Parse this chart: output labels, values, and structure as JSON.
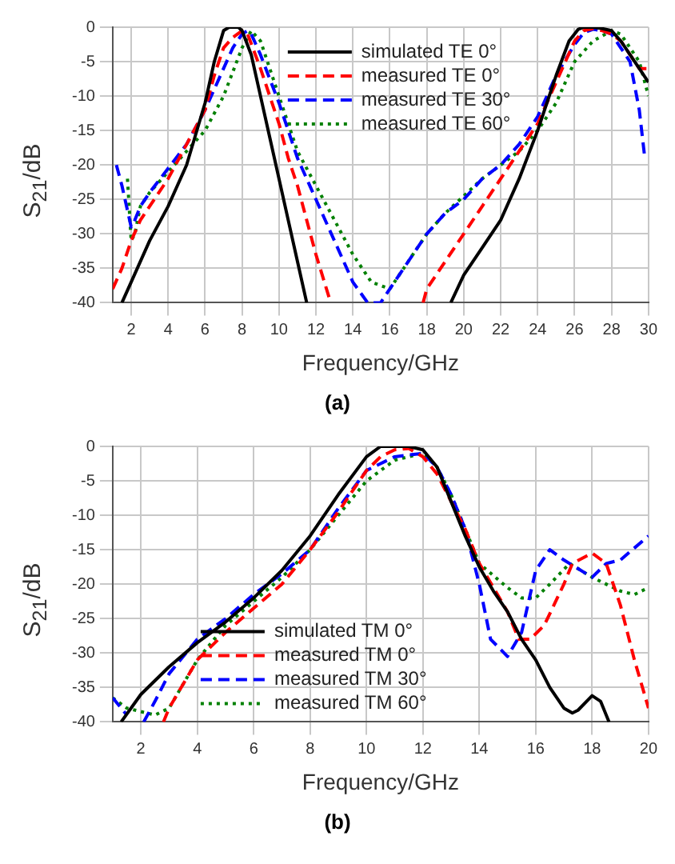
{
  "chart_data": [
    {
      "type": "line",
      "xlabel": "Frequency/GHz",
      "ylabel": "S$_{21}$/dB",
      "xlim": [
        1,
        30
      ],
      "xticks": [
        2,
        4,
        6,
        8,
        10,
        12,
        14,
        16,
        18,
        20,
        22,
        24,
        26,
        28,
        30
      ],
      "ylim": [
        -40,
        0
      ],
      "yticks": [
        -40,
        -35,
        -30,
        -25,
        -20,
        -15,
        -10,
        -5,
        0
      ],
      "grid": true,
      "legend": "top right",
      "annotations": [
        "(a)"
      ],
      "series": [
        {
          "name": "simulated TE 0°",
          "color": "#000000",
          "line_style": "solid",
          "x": [
            1.5,
            2,
            3,
            4,
            5,
            6,
            6.5,
            7,
            7.3,
            7.8,
            8,
            8.5,
            9,
            9.5,
            10,
            10.5,
            11,
            11.5,
            15,
            19.3,
            20,
            21,
            22,
            23,
            24,
            25,
            25.7,
            26.2,
            26.5,
            27,
            27.5,
            28,
            28.5,
            29,
            29.5,
            30
          ],
          "values": [
            -40,
            -37,
            -31,
            -26,
            -20,
            -11,
            -5,
            -0.5,
            0,
            0,
            -0.5,
            -4,
            -10,
            -16,
            -22,
            -28,
            -34,
            -40,
            null,
            -40,
            -36,
            -32,
            -28,
            -22,
            -15,
            -7,
            -2,
            -0.3,
            0,
            0,
            -0.2,
            -0.5,
            -2,
            -4,
            -6,
            -8
          ]
        },
        {
          "name": "measured TE 0°",
          "color": "#ff0000",
          "line_style": "dashed",
          "x": [
            1,
            1.5,
            2,
            2.5,
            3,
            4,
            5,
            6,
            6.5,
            7,
            7.5,
            8,
            8.3,
            9,
            10,
            10.5,
            11,
            12,
            12.8,
            15,
            17.8,
            18,
            19,
            20,
            21,
            22,
            23,
            24,
            25,
            26,
            26.5,
            27,
            27.5,
            28,
            28.5,
            29,
            29.5,
            30
          ],
          "values": [
            -38,
            -35,
            -31,
            -28,
            -26,
            -22,
            -17,
            -12,
            -7,
            -3,
            -1.5,
            -0.5,
            -1,
            -6,
            -14,
            -19,
            -23,
            -33,
            -40,
            null,
            -40,
            -38,
            -34,
            -30,
            -26,
            -22,
            -18,
            -14,
            -8,
            -2,
            -0.5,
            -0.2,
            -0.5,
            -1,
            -2,
            -4,
            -6,
            -6
          ]
        },
        {
          "name": "measured TE 30°",
          "color": "#0000ff",
          "line_style": "dashed",
          "x": [
            1.2,
            1.5,
            2,
            2.2,
            2.5,
            3,
            4,
            5,
            6,
            7,
            7.5,
            8,
            8.3,
            8.5,
            9,
            10,
            11,
            12,
            13,
            14,
            14.8,
            15.5,
            16,
            17,
            18,
            19,
            20,
            21,
            22,
            23,
            24,
            25,
            26,
            26.5,
            27,
            27.5,
            28,
            28.5,
            29,
            29.5,
            29.8
          ],
          "values": [
            -20,
            -23,
            -29,
            -28,
            -26,
            -24,
            -20.5,
            -17,
            -12,
            -6,
            -3,
            -1,
            -0.5,
            -1,
            -4,
            -11,
            -19,
            -25,
            -31,
            -37,
            -40,
            -40,
            -38,
            -34,
            -30,
            -27,
            -25,
            -22,
            -20,
            -17,
            -13,
            -7,
            -2.5,
            -0.8,
            -0.3,
            -0.5,
            -1,
            -3,
            -5,
            -12,
            -19
          ]
        },
        {
          "name": "measured TE 60°",
          "color": "#008000",
          "line_style": "dotted",
          "x": [
            1.8,
            2,
            2.2,
            2.5,
            3,
            4,
            5,
            6,
            7,
            8,
            8.5,
            9,
            10,
            11,
            12,
            13,
            14,
            15,
            16,
            17,
            18,
            19,
            20,
            21,
            22,
            23,
            24,
            25,
            26,
            27,
            28,
            28.5,
            29,
            29.5,
            30
          ],
          "values": [
            -22,
            -31,
            -30,
            -26,
            -24,
            -21,
            -18,
            -15,
            -10,
            -3,
            -0.5,
            -2,
            -10,
            -18,
            -23,
            -28,
            -33,
            -37,
            -38,
            -34,
            -30,
            -27,
            -24.5,
            -22,
            -20,
            -18,
            -15,
            -11,
            -5,
            -2,
            -0.5,
            -1,
            -3,
            -5,
            -10
          ]
        }
      ]
    },
    {
      "type": "line",
      "xlabel": "Frequency/GHz",
      "ylabel": "S$_{21}$/dB",
      "xlim": [
        1,
        20
      ],
      "xticks": [
        2,
        4,
        6,
        8,
        10,
        12,
        14,
        16,
        18,
        20
      ],
      "ylim": [
        -40,
        0
      ],
      "yticks": [
        -40,
        -35,
        -30,
        -25,
        -20,
        -15,
        -10,
        -5,
        0
      ],
      "grid": true,
      "legend": "bottom",
      "annotations": [
        "(b)"
      ],
      "series": [
        {
          "name": "simulated TM 0°",
          "color": "#000000",
          "line_style": "solid",
          "x": [
            1.3,
            2,
            3,
            4,
            5,
            6,
            7,
            8,
            9,
            10,
            10.5,
            11,
            11.5,
            12,
            12.5,
            13,
            13.5,
            14,
            14.5,
            15,
            15.5,
            16,
            16.5,
            17,
            17.3,
            17.5,
            18,
            18.3,
            18.6
          ],
          "values": [
            -40,
            -36,
            -32,
            -28.5,
            -25.5,
            -22,
            -18,
            -13,
            -7,
            -1.5,
            0,
            0,
            0,
            -0.5,
            -3,
            -8,
            -13,
            -17.5,
            -21,
            -24,
            -28,
            -31,
            -35,
            -38,
            -38.7,
            -38.3,
            -36.2,
            -37,
            -40
          ]
        },
        {
          "name": "measured TM 0°",
          "color": "#ff0000",
          "line_style": "dashed",
          "x": [
            2.8,
            3,
            4,
            5,
            6,
            7,
            8,
            9,
            10,
            10.5,
            11,
            11.5,
            12,
            12.5,
            13,
            13.5,
            14,
            15,
            15.4,
            15.8,
            16.3,
            17,
            17.3,
            18,
            18.5,
            19,
            19.5,
            20
          ],
          "values": [
            -40,
            -38,
            -31,
            -27,
            -23.5,
            -20,
            -15,
            -9.5,
            -3.5,
            -1.5,
            -0.5,
            -0.3,
            -1.5,
            -4,
            -8,
            -12,
            -17,
            -24,
            -28,
            -28,
            -26,
            -20,
            -17,
            -15.5,
            -17,
            -23,
            -31,
            -38
          ]
        },
        {
          "name": "measured TM 30°",
          "color": "#0000ff",
          "line_style": "dashed",
          "x": [
            1,
            1.5,
            1.8,
            2.1,
            2.5,
            3,
            4,
            5,
            6,
            7,
            8,
            9,
            10,
            11,
            12,
            12.5,
            13,
            13.5,
            14,
            14.4,
            15,
            15.5,
            16,
            16.5,
            17,
            18,
            18.5,
            19,
            20
          ],
          "values": [
            -36.5,
            -39,
            null,
            -40,
            -37,
            -33,
            -28,
            -25,
            -21.5,
            -18.5,
            -15,
            -9,
            -3.5,
            -1.5,
            -1,
            -3,
            -7,
            -12,
            -20,
            -28,
            -30.5,
            -27,
            -18,
            -15,
            -16.5,
            -19,
            -17,
            -16.5,
            -13
          ]
        },
        {
          "name": "measured TM 60°",
          "color": "#008000",
          "line_style": "dotted",
          "x": [
            1,
            1.5,
            2,
            2.5,
            3,
            4,
            5,
            6,
            7,
            8,
            9,
            10,
            11,
            12,
            12.5,
            13,
            13.5,
            14,
            15,
            15.5,
            16,
            16.5,
            17.2,
            18,
            19,
            19.5,
            20
          ],
          "values": [
            -36.5,
            -38,
            -38.5,
            -39,
            -38,
            -31,
            -26,
            -22.5,
            -19,
            -15,
            -10,
            -5,
            -2,
            -1,
            -3,
            -7,
            -12,
            -17,
            -20.5,
            -22,
            -22,
            -20,
            -17,
            -19,
            -21,
            -21.5,
            -20.5
          ]
        }
      ]
    }
  ]
}
